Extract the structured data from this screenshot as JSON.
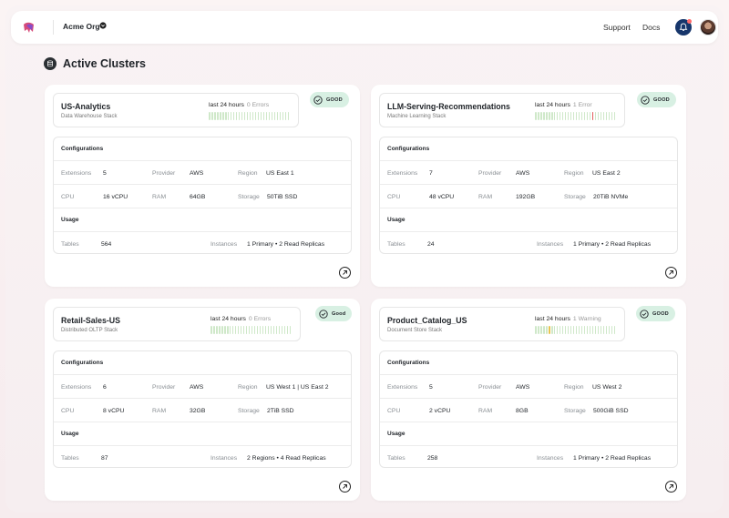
{
  "header": {
    "org_name": "Acme Org",
    "nav": {
      "support": "Support",
      "docs": "Docs"
    }
  },
  "page": {
    "title": "Active Clusters"
  },
  "labels": {
    "configurations": "Configurations",
    "usage": "Usage",
    "extensions": "Extensions",
    "provider": "Provider",
    "region": "Region",
    "cpu": "CPU",
    "ram": "RAM",
    "storage": "Storage",
    "tables": "Tables",
    "instances": "Instances",
    "last24": "last 24 hours"
  },
  "colors": {
    "good_badge": "#d8f0e3",
    "tick_ok": "#cfe8c9",
    "tick_error": "#e35b5b",
    "tick_warning": "#e8c44e",
    "bell_bg": "#17366b"
  },
  "clusters": [
    {
      "name": "US-Analytics",
      "subtitle": "Data Warehouse Stack",
      "status": "GOOD",
      "events": "0 Errors",
      "ticks_total": 30,
      "ticks_flagged": [],
      "flag_type": "none",
      "extensions": "5",
      "provider": "AWS",
      "region": "US East 1",
      "cpu": "16 vCPU",
      "ram": "64GB",
      "storage": "50TiB SSD",
      "tables": "564",
      "instances": "1 Primary • 2 Read Replicas"
    },
    {
      "name": "LLM-Serving-Recommendations",
      "subtitle": "Machine Learning Stack",
      "status": "GOOD",
      "events": "1 Error",
      "ticks_total": 30,
      "ticks_flagged": [
        21
      ],
      "flag_type": "red",
      "extensions": "7",
      "provider": "AWS",
      "region": "US East 2",
      "cpu": "48 vCPU",
      "ram": "192GB",
      "storage": "20TiB NVMe",
      "tables": "24",
      "instances": "1 Primary • 2 Read Replicas"
    },
    {
      "name": "Retail-Sales-US",
      "subtitle": "Distributed OLTP Stack",
      "status": "Good",
      "events": "0 Errors",
      "ticks_total": 30,
      "ticks_flagged": [],
      "flag_type": "none",
      "extensions": "6",
      "provider": "AWS",
      "region": "US West 1  |  US East 2",
      "cpu": "8 vCPU",
      "ram": "32GB",
      "storage": "2TiB SSD",
      "tables": "87",
      "instances": "2 Regions • 4 Read Replicas"
    },
    {
      "name": "Product_Catalog_US",
      "subtitle": "Document Store Stack",
      "status": "GOOD",
      "events": "1 Warning",
      "ticks_total": 30,
      "ticks_flagged": [
        5
      ],
      "flag_type": "yellow",
      "extensions": "5",
      "provider": "AWS",
      "region": "US West 2",
      "cpu": "2 vCPU",
      "ram": "8GB",
      "storage": "500GiB SSD",
      "tables": "258",
      "instances": "1 Primary • 2 Read Replicas"
    }
  ]
}
